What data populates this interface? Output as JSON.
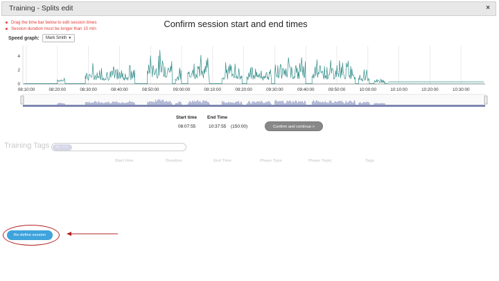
{
  "window": {
    "title": "Training - Splits edit",
    "close_glyph": "×"
  },
  "warnings": [
    "Drag the time bar below to edit session times",
    "Session duration must be longer than 10 min"
  ],
  "heading": "Confirm session start and end times",
  "speed_graph": {
    "label": "Speed graph:",
    "athlete": "Mark Smith"
  },
  "chart_data": {
    "type": "line",
    "y_ticks": [
      "0",
      "2",
      "4"
    ],
    "ylim": [
      0,
      5.5
    ],
    "x_ticks": [
      "08:10:00",
      "08:20:00",
      "08:30:00",
      "08:40:00",
      "08:50:00",
      "09:00:00",
      "09:10:00",
      "09:20:00",
      "09:30:00",
      "09:40:00",
      "09:50:00",
      "10:00:00",
      "10:10:00",
      "10:20:00",
      "10:30:00"
    ],
    "series_color": "#2e8b87",
    "grid": true,
    "active_segments": [
      {
        "from": "08:20:00",
        "to": "08:22:30",
        "peak": 1.5
      },
      {
        "from": "08:29:00",
        "to": "08:45:00",
        "peak": 3.0
      },
      {
        "from": "08:49:00",
        "to": "08:57:00",
        "peak": 5.2
      },
      {
        "from": "08:58:00",
        "to": "09:00:00",
        "peak": 2.6
      },
      {
        "from": "09:02:00",
        "to": "09:09:00",
        "peak": 4.6
      },
      {
        "from": "09:13:00",
        "to": "09:19:30",
        "peak": 3.6
      },
      {
        "from": "09:21:00",
        "to": "09:29:00",
        "peak": 3.2
      },
      {
        "from": "09:30:00",
        "to": "09:40:00",
        "peak": 4.2
      },
      {
        "from": "09:42:00",
        "to": "09:56:00",
        "peak": 4.0
      },
      {
        "from": "09:57:00",
        "to": "10:00:30",
        "peak": 2.4
      },
      {
        "from": "10:02:00",
        "to": "10:05:30",
        "peak": 1.0
      }
    ]
  },
  "session": {
    "start_header": "Start time",
    "end_header": "End Time",
    "start_value": "08:07:55",
    "end_value": "10:37:55",
    "duration": "(150:00)"
  },
  "confirm_button": "Confirm and continue >",
  "training_tags": {
    "label": "Training Tags",
    "chip": "AC - 1 ×"
  },
  "table_headers": [
    "Start time",
    "Duration",
    "End Time",
    "Phase Type",
    "Phase Topic",
    "Tags"
  ],
  "redefine_button": "Re-define session"
}
